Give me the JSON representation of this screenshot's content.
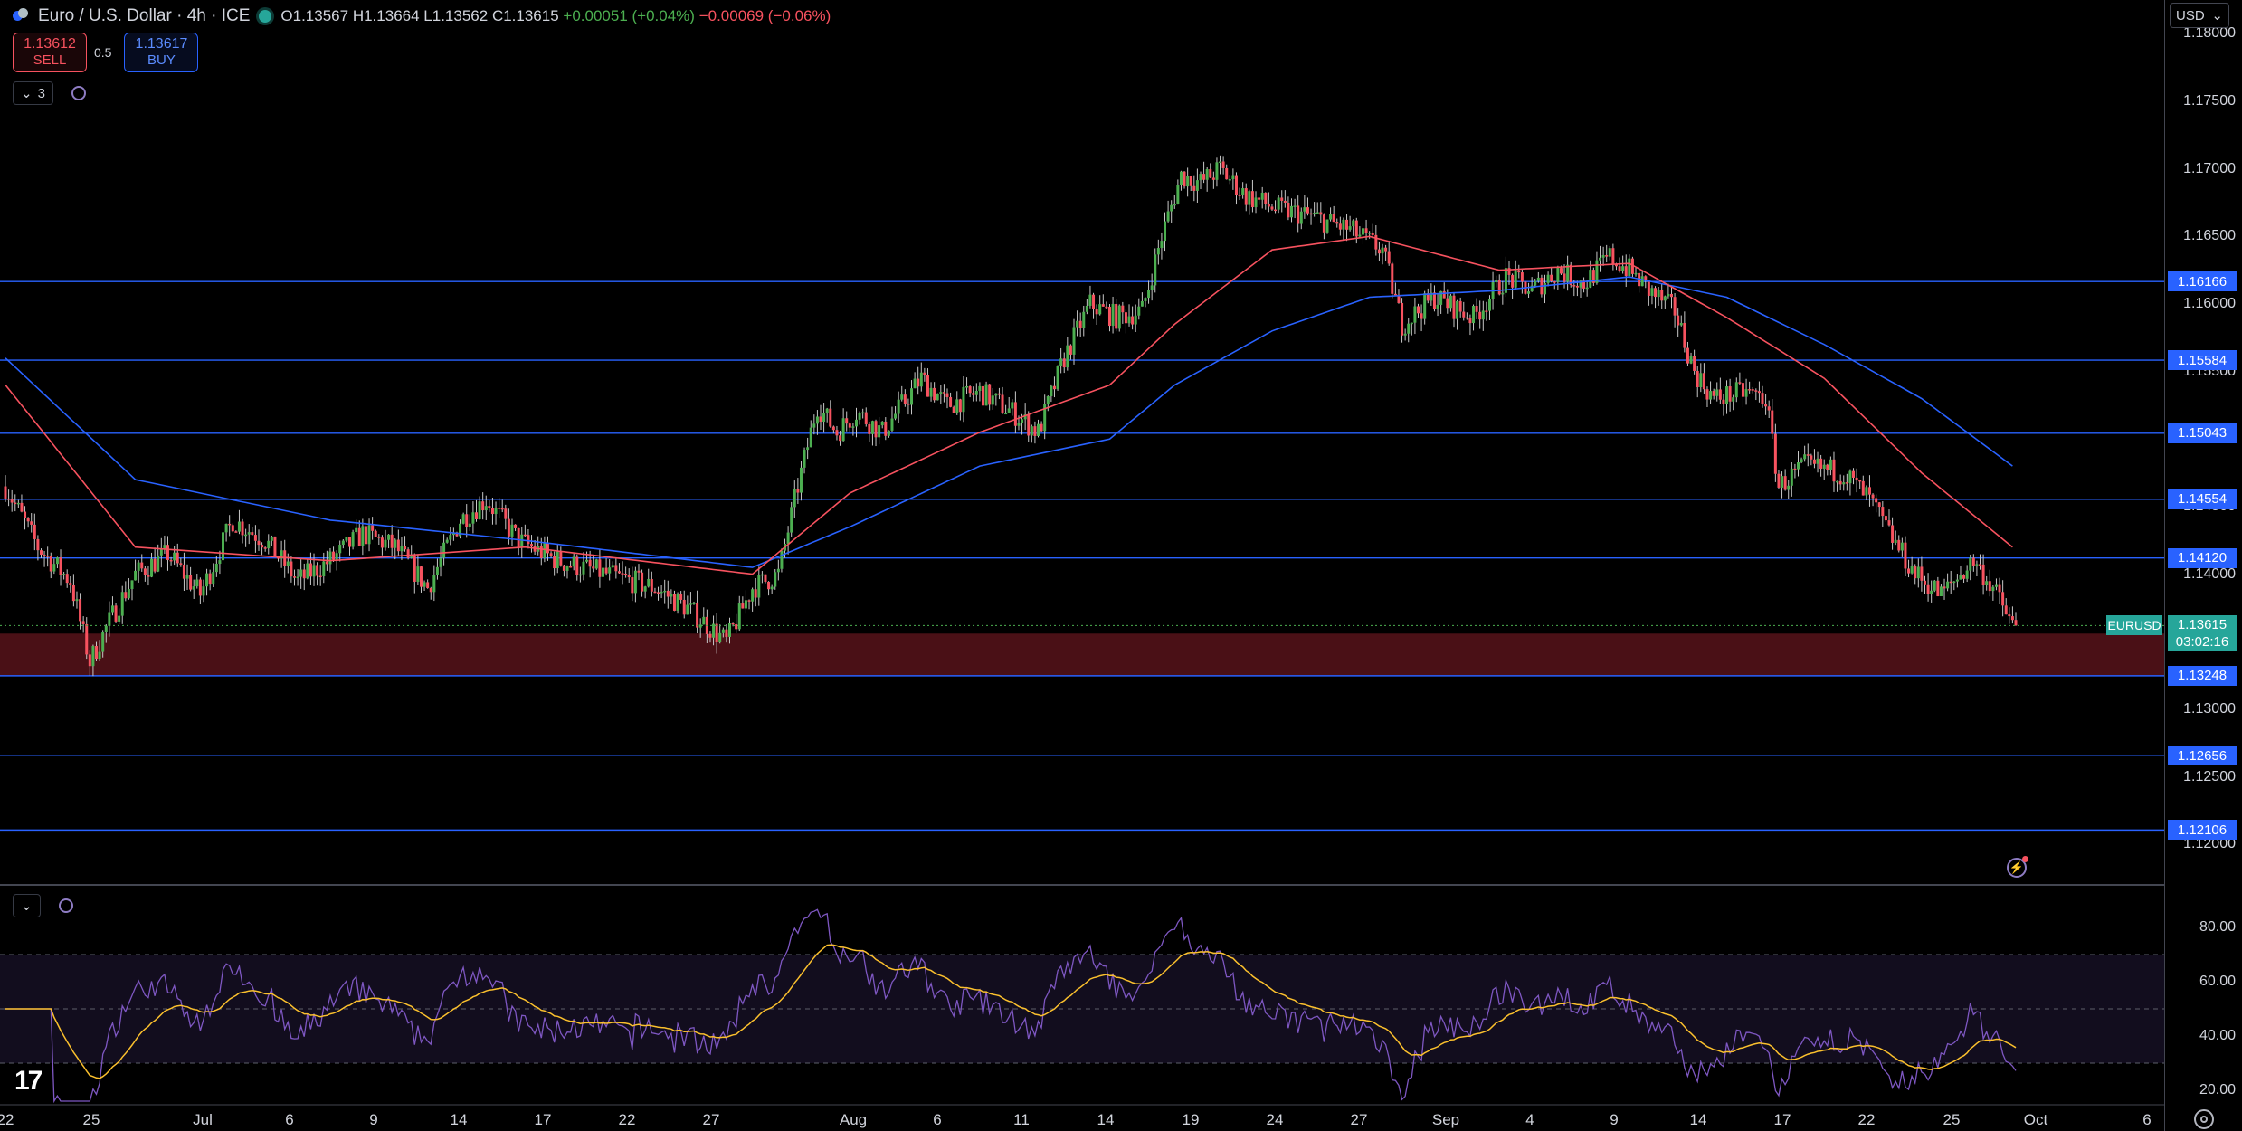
{
  "header": {
    "title": "Euro / U.S. Dollar · 4h · ICE",
    "ohlc": {
      "open": "O1.13567",
      "high": "H1.13664",
      "low": "L1.13562",
      "close": "C1.13615",
      "change": "+0.00051 (+0.04%)",
      "change2": "−0.00069 (−0.06%)"
    },
    "symbol_icon": "euro-dollar-flags-icon"
  },
  "trade": {
    "sell_price": "1.13612",
    "sell_label": "SELL",
    "spread": "0.5",
    "buy_price": "1.13617",
    "buy_label": "BUY"
  },
  "indicators": {
    "count": "3"
  },
  "currency": "USD",
  "price_axis": {
    "ticks": [
      "1.18000",
      "1.17500",
      "1.17000",
      "1.16500",
      "1.16000",
      "1.15500",
      "1.15000",
      "1.14500",
      "1.14000",
      "1.13500",
      "1.13000",
      "1.12500",
      "1.12000"
    ],
    "levels": [
      "1.16166",
      "1.15584",
      "1.15043",
      "1.14554",
      "1.14120",
      "1.13248",
      "1.12656",
      "1.12106"
    ],
    "current_price": "1.13615",
    "countdown": "03:02:16",
    "symbol": "EURUSD"
  },
  "rsi_axis": {
    "ticks": [
      "80.00",
      "60.00",
      "40.00",
      "20.00"
    ]
  },
  "time_axis": {
    "labels": [
      "22",
      "25",
      "Jul",
      "6",
      "9",
      "14",
      "17",
      "22",
      "27",
      "Aug",
      "6",
      "11",
      "14",
      "19",
      "24",
      "27",
      "Sep",
      "4",
      "9",
      "14",
      "17",
      "22",
      "25",
      "Oct",
      "6"
    ]
  },
  "logo": "17",
  "colors": {
    "up": "#4caf50",
    "down": "#f7525f",
    "ema_fast": "#f7525f",
    "ema_slow": "#2962ff",
    "level": "#2962ff",
    "rsi": "#7e57c2",
    "rsi_ma": "#fbc02d",
    "support_zone": "#4a1016"
  },
  "chart_data": {
    "type": "candlestick",
    "timeframe": "4h",
    "ylim": [
      1.117,
      1.1825
    ],
    "horizontal_levels": [
      1.16166,
      1.15584,
      1.15043,
      1.14554,
      1.1412,
      1.13248,
      1.12656,
      1.12106
    ],
    "support_zone": [
      1.1325,
      1.1356
    ],
    "close_anchors": [
      [
        0,
        1.1465
      ],
      [
        10,
        1.142
      ],
      [
        20,
        1.1395
      ],
      [
        26,
        1.1335
      ],
      [
        32,
        1.1365
      ],
      [
        40,
        1.14
      ],
      [
        50,
        1.1415
      ],
      [
        60,
        1.1385
      ],
      [
        70,
        1.144
      ],
      [
        80,
        1.1425
      ],
      [
        90,
        1.1395
      ],
      [
        100,
        1.141
      ],
      [
        110,
        1.143
      ],
      [
        120,
        1.142
      ],
      [
        130,
        1.139
      ],
      [
        140,
        1.144
      ],
      [
        148,
        1.1455
      ],
      [
        158,
        1.1425
      ],
      [
        170,
        1.141
      ],
      [
        185,
        1.14
      ],
      [
        200,
        1.139
      ],
      [
        210,
        1.1375
      ],
      [
        222,
        1.135
      ],
      [
        230,
        1.139
      ],
      [
        238,
        1.14
      ],
      [
        244,
        1.1465
      ],
      [
        250,
        1.1525
      ],
      [
        256,
        1.1505
      ],
      [
        262,
        1.152
      ],
      [
        270,
        1.1505
      ],
      [
        282,
        1.1545
      ],
      [
        290,
        1.1525
      ],
      [
        300,
        1.1535
      ],
      [
        310,
        1.152
      ],
      [
        318,
        1.1505
      ],
      [
        326,
        1.156
      ],
      [
        334,
        1.16
      ],
      [
        342,
        1.159
      ],
      [
        350,
        1.1595
      ],
      [
        356,
        1.165
      ],
      [
        362,
        1.1695
      ],
      [
        368,
        1.169
      ],
      [
        374,
        1.17
      ],
      [
        382,
        1.168
      ],
      [
        392,
        1.167
      ],
      [
        402,
        1.1665
      ],
      [
        414,
        1.1655
      ],
      [
        424,
        1.164
      ],
      [
        430,
        1.1585
      ],
      [
        440,
        1.1605
      ],
      [
        452,
        1.159
      ],
      [
        462,
        1.162
      ],
      [
        470,
        1.161
      ],
      [
        478,
        1.1625
      ],
      [
        486,
        1.1615
      ],
      [
        494,
        1.1635
      ],
      [
        500,
        1.1625
      ],
      [
        506,
        1.161
      ],
      [
        514,
        1.1595
      ],
      [
        520,
        1.155
      ],
      [
        526,
        1.153
      ],
      [
        536,
        1.1535
      ],
      [
        542,
        1.153
      ],
      [
        546,
        1.1465
      ],
      [
        554,
        1.148
      ],
      [
        566,
        1.1475
      ],
      [
        574,
        1.1455
      ],
      [
        580,
        1.143
      ],
      [
        588,
        1.14
      ],
      [
        596,
        1.1385
      ],
      [
        602,
        1.14
      ],
      [
        606,
        1.141
      ],
      [
        612,
        1.139
      ],
      [
        618,
        1.1362
      ]
    ],
    "ema_fast": [
      [
        0,
        1.154
      ],
      [
        40,
        1.142
      ],
      [
        100,
        1.141
      ],
      [
        160,
        1.142
      ],
      [
        230,
        1.14
      ],
      [
        260,
        1.146
      ],
      [
        300,
        1.1505
      ],
      [
        340,
        1.154
      ],
      [
        360,
        1.1585
      ],
      [
        390,
        1.164
      ],
      [
        420,
        1.165
      ],
      [
        460,
        1.1625
      ],
      [
        500,
        1.163
      ],
      [
        530,
        1.159
      ],
      [
        560,
        1.1545
      ],
      [
        590,
        1.1475
      ],
      [
        618,
        1.142
      ]
    ],
    "ema_slow": [
      [
        0,
        1.156
      ],
      [
        40,
        1.147
      ],
      [
        100,
        1.144
      ],
      [
        160,
        1.1425
      ],
      [
        230,
        1.1405
      ],
      [
        260,
        1.1435
      ],
      [
        300,
        1.148
      ],
      [
        340,
        1.15
      ],
      [
        360,
        1.154
      ],
      [
        390,
        1.158
      ],
      [
        420,
        1.1605
      ],
      [
        460,
        1.161
      ],
      [
        500,
        1.162
      ],
      [
        530,
        1.1605
      ],
      [
        560,
        1.157
      ],
      [
        590,
        1.153
      ],
      [
        618,
        1.148
      ]
    ],
    "rsi": {
      "ylim": [
        15,
        95
      ],
      "overbought": 70,
      "mid": 50,
      "oversold": 30,
      "last": 38.5,
      "ma_last": 36.0
    }
  }
}
